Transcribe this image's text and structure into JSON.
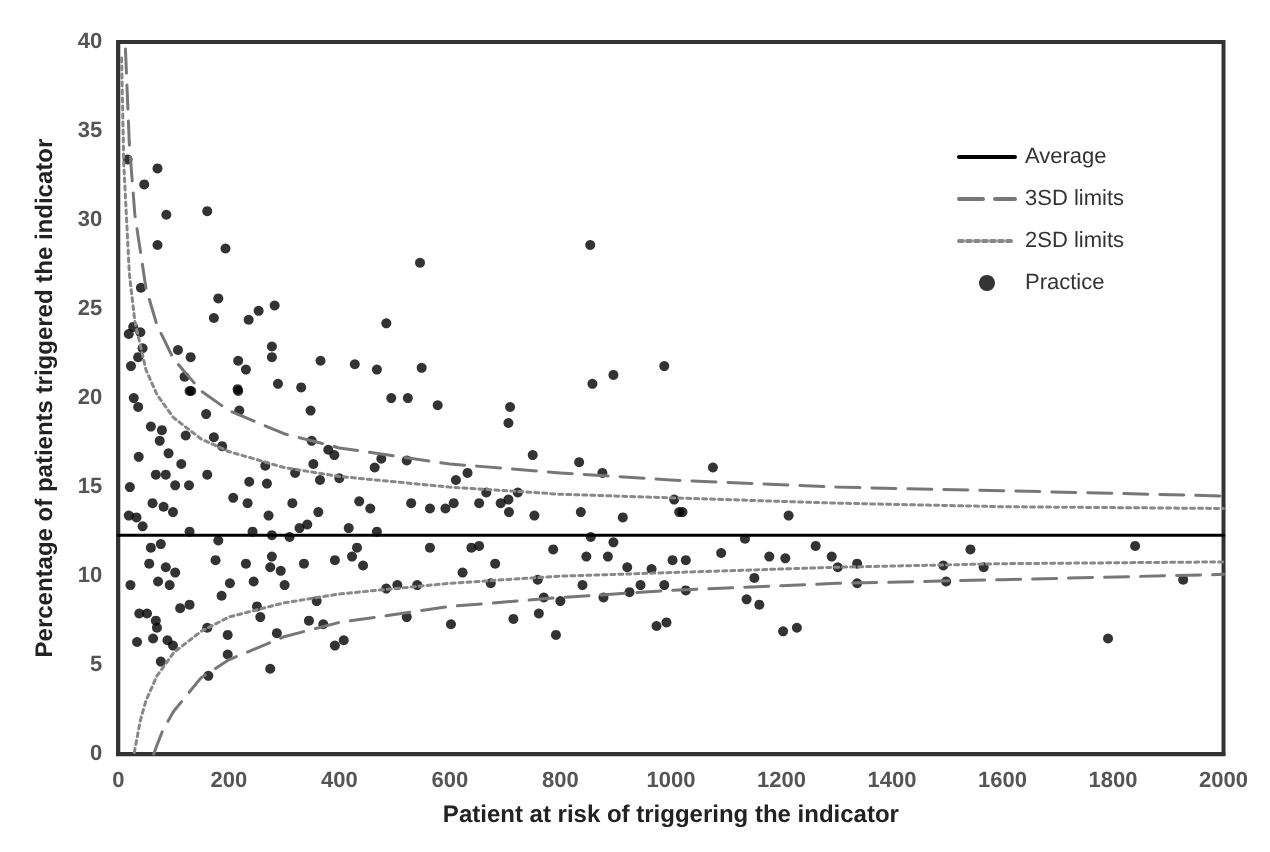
{
  "chart_data": {
    "type": "scatter",
    "xlabel": "Patient at risk of triggering the indicator",
    "ylabel": "Percentage of patients triggered the indicator",
    "xlim": [
      0,
      2000
    ],
    "ylim": [
      0,
      40
    ],
    "xticks": [
      0,
      200,
      400,
      600,
      800,
      1000,
      1200,
      1400,
      1600,
      1800,
      2000
    ],
    "yticks": [
      0,
      5,
      10,
      15,
      20,
      25,
      30,
      35,
      40
    ],
    "grid": false,
    "legend": "top right",
    "series": [
      {
        "name": "Average",
        "type": "line",
        "color": "#000000",
        "line_style": "solid",
        "marker": "none",
        "x": [
          0,
          2000
        ],
        "values": [
          12.3,
          12.3
        ]
      },
      {
        "name": "3SD limits",
        "type": "line",
        "color": "#777777",
        "line_style": "dashed",
        "marker": "none",
        "x": [
          13,
          20,
          30,
          50,
          70,
          100,
          150,
          200,
          300,
          400,
          600,
          800,
          1000,
          1300,
          1600,
          2000
        ],
        "values": [
          39.6,
          34.3,
          30.3,
          26.2,
          24.1,
          22.2,
          20.4,
          19.3,
          18.0,
          17.2,
          16.3,
          15.8,
          15.4,
          15.0,
          14.8,
          14.5
        ]
      },
      {
        "type": "line",
        "color": "#777777",
        "line_style": "dashed",
        "marker": "none",
        "x": [
          64,
          70,
          80,
          100,
          150,
          200,
          300,
          400,
          600,
          800,
          1000,
          1300,
          1600,
          2000
        ],
        "values": [
          0,
          0.5,
          1.3,
          2.4,
          4.3,
          5.3,
          6.6,
          7.4,
          8.3,
          8.8,
          9.2,
          9.6,
          9.8,
          10.1
        ]
      },
      {
        "name": "2SD limits",
        "type": "line",
        "color": "#888888",
        "line_style": "dotted",
        "marker": "none",
        "x": [
          6,
          10,
          20,
          30,
          50,
          70,
          100,
          150,
          200,
          300,
          400,
          600,
          800,
          1000,
          1300,
          1600,
          2000
        ],
        "values": [
          39.1,
          33.1,
          27.0,
          24.3,
          21.6,
          20.2,
          18.9,
          17.7,
          17.0,
          16.1,
          15.6,
          15.0,
          14.6,
          14.4,
          14.1,
          13.9,
          13.8
        ]
      },
      {
        "type": "line",
        "color": "#888888",
        "line_style": "dotted",
        "marker": "none",
        "x": [
          29,
          40,
          50,
          70,
          100,
          150,
          200,
          300,
          400,
          600,
          800,
          1000,
          1300,
          1600,
          2000
        ],
        "values": [
          0.1,
          1.9,
          3.0,
          4.4,
          5.7,
          6.9,
          7.7,
          8.5,
          9.0,
          9.6,
          10.0,
          10.2,
          10.5,
          10.7,
          10.8
        ]
      },
      {
        "name": "Practice",
        "color": "#000000",
        "marker": "circle",
        "x": [
          17,
          71,
          47,
          87,
          71,
          161,
          194,
          41,
          546,
          854,
          19,
          27,
          40,
          23,
          36,
          44,
          108,
          131,
          120,
          173,
          181,
          236,
          254,
          283,
          217,
          231,
          278,
          278,
          289,
          331,
          366,
          428,
          468,
          485,
          549,
          858,
          896,
          216,
          129,
          988,
          28,
          36,
          21,
          37,
          19,
          33,
          44,
          22,
          34,
          38,
          52,
          68,
          70,
          63,
          77,
          89,
          99,
          59,
          79,
          75,
          91,
          68,
          86,
          114,
          103,
          62,
          82,
          99,
          59,
          77,
          56,
          86,
          103,
          72,
          93,
          112,
          129,
          132,
          128,
          129,
          122,
          159,
          161,
          173,
          188,
          161,
          163,
          181,
          176,
          187,
          198,
          198,
          202,
          208,
          217,
          219,
          234,
          237,
          243,
          231,
          245,
          251,
          257,
          266,
          269,
          272,
          278,
          278,
          275,
          275,
          287,
          294,
          301,
          310,
          315,
          320,
          328,
          336,
          345,
          342,
          362,
          348,
          350,
          353,
          365,
          359,
          371,
          380,
          391,
          400,
          392,
          392,
          408,
          417,
          423,
          432,
          443,
          436,
          456,
          468,
          476,
          464,
          485,
          505,
          494,
          524,
          522,
          530,
          522,
          541,
          564,
          564,
          578,
          592,
          607,
          602,
          611,
          623,
          632,
          639,
          653,
          653,
          666,
          674,
          682,
          692,
          706,
          709,
          706,
          707,
          723,
          715,
          750,
          753,
          759,
          761,
          770,
          787,
          792,
          800,
          837,
          834,
          840,
          847,
          855,
          876,
          878,
          886,
          896,
          913,
          921,
          925,
          1076,
          1006,
          1015,
          1021,
          1213,
          1134,
          1262,
          1542,
          1840,
          1091,
          1178,
          1207,
          1291,
          1003,
          1027,
          1302,
          1337,
          1493,
          1566,
          965,
          1151,
          945,
          988,
          1027,
          1337,
          1498,
          1927,
          1137,
          1160,
          974,
          992,
          1203,
          1228,
          1791
        ],
        "values": [
          33.4,
          32.9,
          32.0,
          30.3,
          28.6,
          30.5,
          28.4,
          26.2,
          27.6,
          28.6,
          23.6,
          24.0,
          23.7,
          21.8,
          22.3,
          22.8,
          22.7,
          22.3,
          21.2,
          24.5,
          25.6,
          24.4,
          24.9,
          25.2,
          22.1,
          21.6,
          22.9,
          22.3,
          20.8,
          20.6,
          22.1,
          21.9,
          21.6,
          24.2,
          21.7,
          20.8,
          21.3,
          20.5,
          20.4,
          21.8,
          20.0,
          19.5,
          15.0,
          16.7,
          13.4,
          13.3,
          12.8,
          9.5,
          6.3,
          7.9,
          7.9,
          7.5,
          7.1,
          6.5,
          5.2,
          6.4,
          6.1,
          18.4,
          18.2,
          17.6,
          16.9,
          15.7,
          15.7,
          16.3,
          15.1,
          14.1,
          13.9,
          13.6,
          11.6,
          11.8,
          10.7,
          10.5,
          10.2,
          9.7,
          9.5,
          8.2,
          8.4,
          20.4,
          15.1,
          12.5,
          17.9,
          19.1,
          15.7,
          17.8,
          17.3,
          7.1,
          4.4,
          12.0,
          10.9,
          8.9,
          6.7,
          5.6,
          9.6,
          14.4,
          20.4,
          19.3,
          14.1,
          15.3,
          12.5,
          10.7,
          9.7,
          8.3,
          7.7,
          16.2,
          15.2,
          13.4,
          12.3,
          11.1,
          10.5,
          4.8,
          6.8,
          10.3,
          9.5,
          12.2,
          14.1,
          15.8,
          12.7,
          10.7,
          7.5,
          12.9,
          13.6,
          19.3,
          17.6,
          16.3,
          15.4,
          8.6,
          7.3,
          17.1,
          16.8,
          15.5,
          10.9,
          6.1,
          6.4,
          12.7,
          11.1,
          11.6,
          10.6,
          14.2,
          13.8,
          12.5,
          16.6,
          16.1,
          9.3,
          9.5,
          20.0,
          20.0,
          16.5,
          14.1,
          7.7,
          9.5,
          13.8,
          11.6,
          19.6,
          13.8,
          14.1,
          7.3,
          15.4,
          10.2,
          15.8,
          11.6,
          11.7,
          14.1,
          14.7,
          9.6,
          10.7,
          14.1,
          14.3,
          19.5,
          18.6,
          13.6,
          14.7,
          7.6,
          16.8,
          13.4,
          9.8,
          7.9,
          8.8,
          11.5,
          6.7,
          8.6,
          13.6,
          16.4,
          9.5,
          11.1,
          12.2,
          15.8,
          8.8,
          11.1,
          11.9,
          13.3,
          10.5,
          9.1,
          16.1,
          14.3,
          13.6,
          13.6,
          13.4,
          12.1,
          11.7,
          11.5,
          11.7,
          11.3,
          11.1,
          11.0,
          11.1,
          10.9,
          10.9,
          10.5,
          10.7,
          10.6,
          10.5,
          10.4,
          9.9,
          9.5,
          9.5,
          9.2,
          9.6,
          9.7,
          9.8,
          8.7,
          8.4,
          7.2,
          7.4,
          6.9,
          7.1,
          6.5
        ]
      }
    ]
  }
}
